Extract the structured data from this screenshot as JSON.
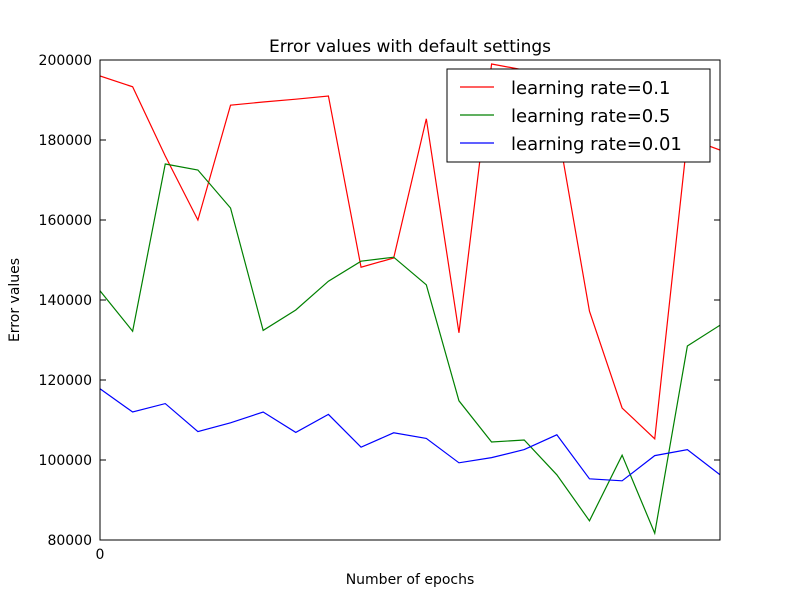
{
  "chart_data": {
    "type": "line",
    "title": "Error values with default settings",
    "xlabel": "Number of epochs",
    "ylabel": "Error values",
    "xlim": [
      0,
      19
    ],
    "ylim": [
      80000,
      200000
    ],
    "x_tick_labels": [
      {
        "value": 0,
        "label": "0"
      }
    ],
    "y_ticks": [
      80000,
      100000,
      120000,
      140000,
      160000,
      180000,
      200000
    ],
    "y_tick_labels": [
      "80000",
      "100000",
      "120000",
      "140000",
      "160000",
      "180000",
      "200000"
    ],
    "grid": false,
    "legend_position": "top-right",
    "x": [
      0,
      1,
      2,
      3,
      4,
      5,
      6,
      7,
      8,
      9,
      10,
      11,
      12,
      13,
      14,
      15,
      16,
      17,
      18,
      19
    ],
    "series": [
      {
        "name": "learning rate=0.1",
        "color": "#ff0000",
        "values": [
          196000,
          193300,
          176000,
          160000,
          188700,
          189500,
          190200,
          191000,
          148200,
          150500,
          185300,
          131800,
          199000,
          197500,
          184000,
          137200,
          113000,
          105300,
          180500,
          177500
        ]
      },
      {
        "name": "learning rate=0.5",
        "color": "#008000",
        "values": [
          142300,
          132200,
          174000,
          172500,
          163000,
          132400,
          137500,
          144700,
          149700,
          150700,
          143800,
          114800,
          104500,
          105000,
          96300,
          84800,
          101200,
          81700,
          128500,
          133700
        ]
      },
      {
        "name": "learning rate=0.01",
        "color": "#0000ff",
        "values": [
          117800,
          112000,
          114100,
          107100,
          109300,
          112000,
          106900,
          111400,
          103200,
          106800,
          105400,
          99300,
          100600,
          102600,
          106300,
          95300,
          94800,
          101100,
          102600,
          96300
        ]
      }
    ]
  }
}
